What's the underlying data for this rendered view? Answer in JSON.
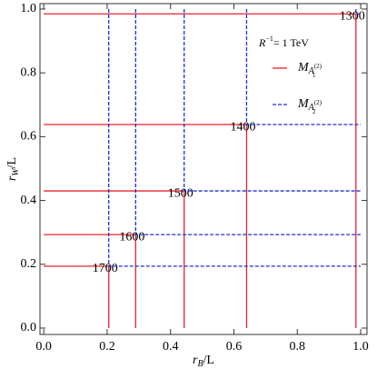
{
  "chart_data": {
    "type": "contour",
    "x_label": {
      "main": "r",
      "sub": "B",
      "rest": "/L"
    },
    "y_label": {
      "main": "r",
      "sub": "W",
      "rest": "/L"
    },
    "annotation": {
      "main": "R",
      "sup": "−1",
      "rest": "= 1 TeV"
    },
    "xlim": [
      -0.012,
      1.02
    ],
    "ylim": [
      -0.02,
      1.017
    ],
    "xticks": [
      {
        "value": 0,
        "label": "0.0"
      },
      0.2,
      0.4,
      0.6,
      0.8,
      {
        "value": 1,
        "label": "1.0"
      }
    ],
    "yticks": [
      {
        "value": 0,
        "label": "0.0"
      },
      0.2,
      0.4,
      0.6,
      0.8,
      {
        "value": 1,
        "label": "1.0"
      }
    ],
    "series": [
      {
        "name": {
          "main": "M",
          "sub": "A",
          "subsub": "1",
          "subsup": "(2)"
        },
        "color": "#e8232a",
        "dashed": false,
        "contours": [
          {
            "level": 1300,
            "x": [
              0,
              0.985,
              0.985
            ],
            "y": [
              0.985,
              0.985,
              0
            ]
          },
          {
            "level": 1400,
            "x": [
              0,
              0.64,
              0.64
            ],
            "y": [
              0.638,
              0.638,
              0
            ]
          },
          {
            "level": 1500,
            "x": [
              0,
              0.443,
              0.443
            ],
            "y": [
              0.43,
              0.43,
              0
            ]
          },
          {
            "level": 1600,
            "x": [
              0,
              0.29,
              0.29
            ],
            "y": [
              0.293,
              0.293,
              0
            ]
          },
          {
            "level": 1700,
            "x": [
              0,
              0.205,
              0.205
            ],
            "y": [
              0.194,
              0.194,
              0
            ]
          }
        ]
      },
      {
        "name": {
          "main": "M",
          "sub": "A",
          "subsub": "2",
          "subsup": "(2)"
        },
        "color": "#1f2fd6",
        "dashed": true,
        "contours": [
          {
            "x": [
              0.985,
              0.985,
              1
            ],
            "y": [
              1,
              0.985,
              0.985
            ]
          },
          {
            "x": [
              0.64,
              0.64,
              1
            ],
            "y": [
              1,
              0.638,
              0.638
            ]
          },
          {
            "x": [
              0.443,
              0.443,
              1
            ],
            "y": [
              1,
              0.43,
              0.43
            ]
          },
          {
            "x": [
              0.29,
              0.29,
              1
            ],
            "y": [
              1,
              0.293,
              0.293
            ]
          },
          {
            "x": [
              0.205,
              0.205,
              1
            ],
            "y": [
              1,
              0.194,
              0.194
            ]
          }
        ]
      }
    ]
  }
}
